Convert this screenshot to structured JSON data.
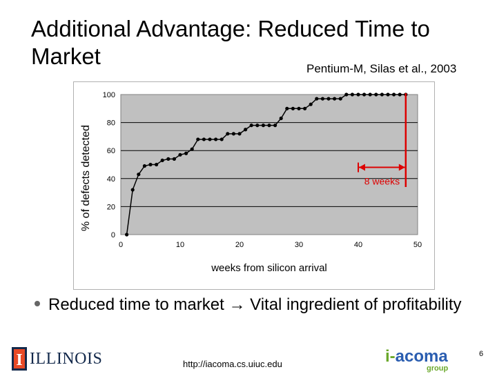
{
  "slide": {
    "title": "Additional Advantage: Reduced Time to Market",
    "citation": "Pentium-M, Silas et al., 2003",
    "bullet_arrow": "→",
    "bullet_pre": "Reduced time to market ",
    "bullet_post": " Vital ingredient of profitability",
    "footer_url": "http://iacoma.cs.uiuc.edu",
    "page_number": "6",
    "logo_left_text": "ILLINOIS",
    "logo_left_letter": "I",
    "logo_right_main_a": "i-",
    "logo_right_main_b": "acoma",
    "logo_right_sub": "group"
  },
  "chart_data": {
    "type": "line",
    "xlabel": "weeks from silicon arrival",
    "ylabel": "% of defects detected",
    "xlim": [
      0,
      50
    ],
    "ylim": [
      0,
      100
    ],
    "xticks": [
      0,
      10,
      20,
      30,
      40,
      50
    ],
    "yticks": [
      0,
      20,
      40,
      60,
      80,
      100
    ],
    "grid": "horizontal",
    "plot_background": "#c0c0c0",
    "series": [
      {
        "x": [
          1,
          2,
          3,
          4,
          5,
          6,
          7,
          8,
          9,
          10,
          11,
          12,
          13,
          14,
          15,
          16,
          17,
          18,
          19,
          20,
          21,
          22,
          23,
          24,
          25,
          26,
          27,
          28,
          29,
          30,
          31,
          32,
          33,
          34,
          35,
          36,
          37,
          38,
          39,
          40,
          41,
          42,
          43,
          44,
          45,
          46,
          47,
          48
        ],
        "y": [
          0,
          32,
          43,
          49,
          50,
          50,
          53,
          54,
          54,
          57,
          58,
          61,
          68,
          68,
          68,
          68,
          68,
          72,
          72,
          72,
          75,
          78,
          78,
          78,
          78,
          78,
          83,
          90,
          90,
          90,
          90,
          93,
          97,
          97,
          97,
          97,
          97,
          100,
          100,
          100,
          100,
          100,
          100,
          100,
          100,
          100,
          100,
          100
        ]
      }
    ],
    "annotation": {
      "label": "8 weeks",
      "x_start": 40,
      "x_end": 48,
      "y": 48,
      "color": "#dd0000"
    }
  }
}
